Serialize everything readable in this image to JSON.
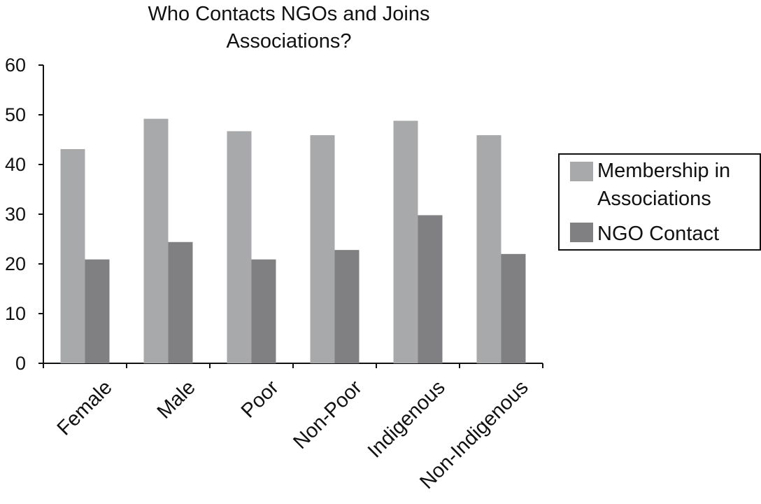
{
  "chart_data": {
    "type": "bar",
    "title": "Who Contacts NGOs and Joins Associations?",
    "title_lines": [
      "Who Contacts NGOs and Joins",
      "Associations?"
    ],
    "categories": [
      "Female",
      "Male",
      "Poor",
      "Non-Poor",
      "Indigenous",
      "Non-Indigenous"
    ],
    "series": [
      {
        "name": "Membership in Associations",
        "legend_lines": [
          "Membership in",
          "Associations"
        ],
        "color": "#a8a9ab",
        "values": [
          43.1,
          49.2,
          46.7,
          45.9,
          48.8,
          45.9
        ]
      },
      {
        "name": "NGO Contact",
        "legend_lines": [
          "NGO Contact"
        ],
        "color": "#808083",
        "values": [
          20.9,
          24.4,
          20.9,
          22.8,
          29.8,
          22.0
        ]
      }
    ],
    "xlabel": "",
    "ylabel": "",
    "ylim": [
      0,
      60
    ],
    "yticks": [
      0,
      10,
      20,
      30,
      40,
      50,
      60
    ],
    "grid": false,
    "legend_position": "right"
  }
}
